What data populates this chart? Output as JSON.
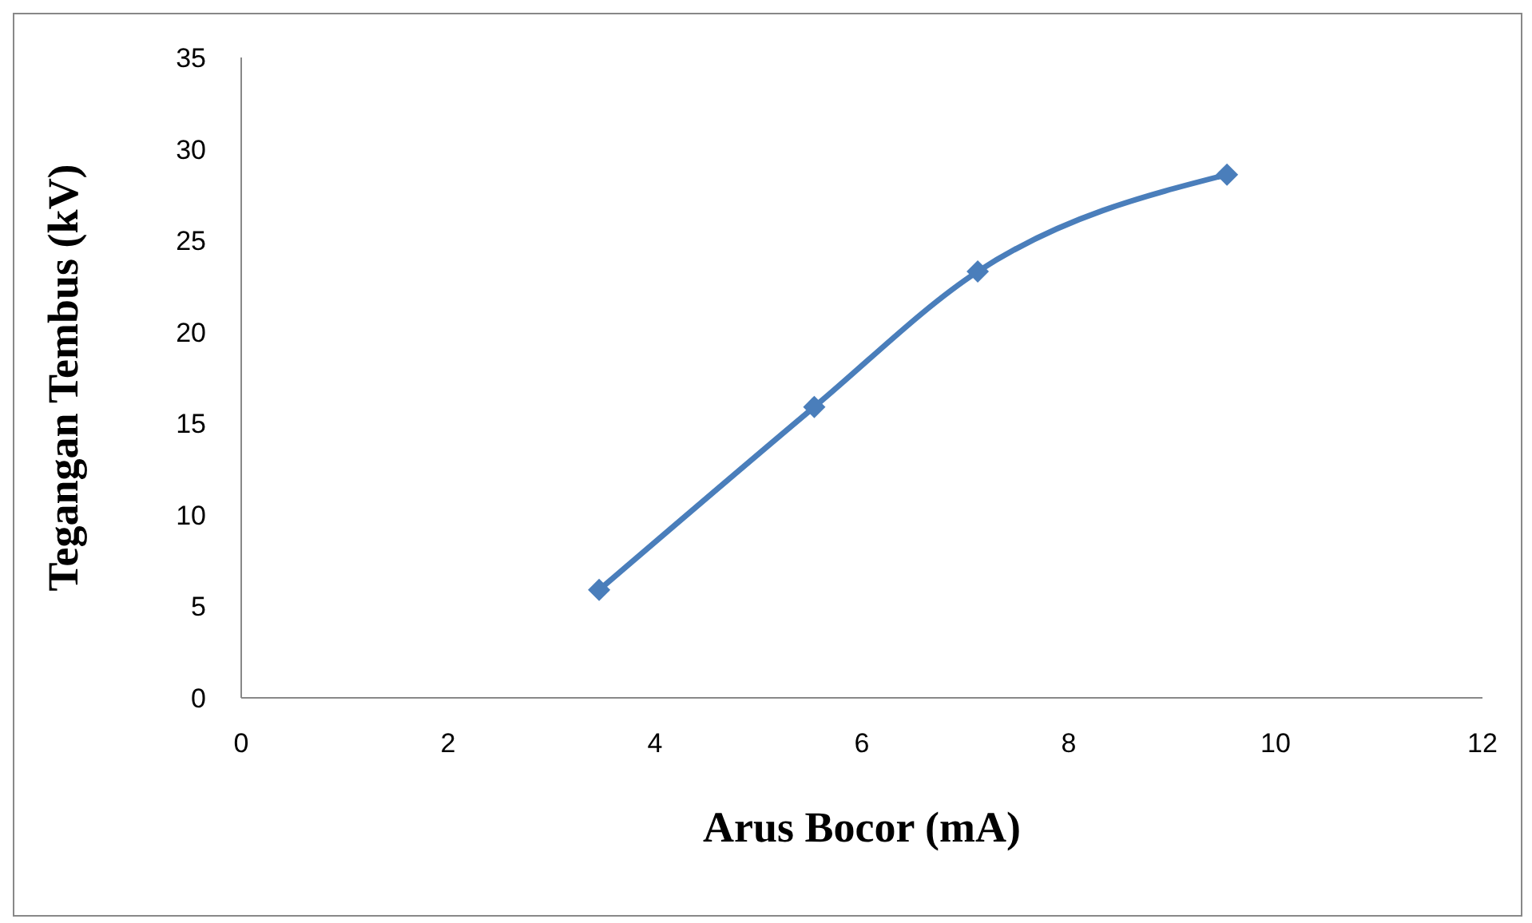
{
  "chart_data": {
    "type": "line",
    "xlabel": "Arus Bocor (mA)",
    "ylabel": "Tegangan Tembus (kV)",
    "x": [
      3.46,
      5.54,
      7.12,
      9.53
    ],
    "series": [
      {
        "color": "#4a7ebb",
        "values": [
          5.9,
          15.9,
          23.3,
          28.6
        ]
      }
    ],
    "xlim": [
      0,
      12
    ],
    "xticks": [
      0,
      2,
      4,
      6,
      8,
      10,
      12
    ],
    "ylim": [
      0,
      35
    ],
    "yticks": [
      0,
      5,
      10,
      15,
      20,
      25,
      30,
      35
    ],
    "grid": false,
    "legend": false,
    "marker": "diamond",
    "line_style": "solid"
  }
}
